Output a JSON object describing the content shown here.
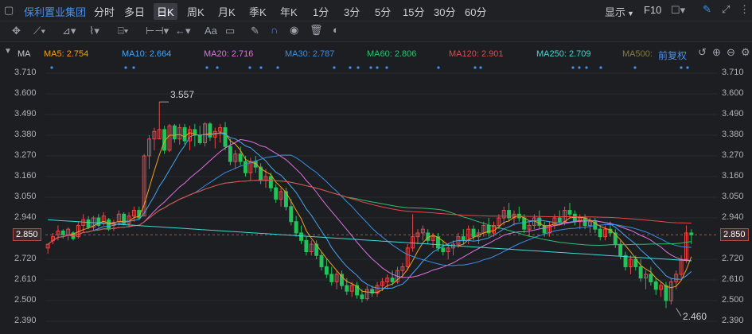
{
  "toolbar": {
    "stock_name": "保利置业集团",
    "tabs": [
      "分时",
      "多日",
      "日K",
      "周K",
      "月K",
      "季K",
      "年K",
      "1分",
      "3分",
      "5分",
      "15分",
      "30分",
      "60分"
    ],
    "active_tab": "日K",
    "display_label": "显示",
    "f10_label": "F10",
    "draw_text_label": "Aa"
  },
  "indicator": {
    "name": "MA",
    "ma": [
      {
        "label": "MA5: 2.754",
        "color": "#f0a020"
      },
      {
        "label": "MA10: 2.664",
        "color": "#4aa3f0"
      },
      {
        "label": "MA20: 2.716",
        "color": "#e070e0"
      },
      {
        "label": "MA30: 2.787",
        "color": "#3a8fe8"
      },
      {
        "label": "MA60: 2.806",
        "color": "#30c070"
      },
      {
        "label": "MA120: 2.901",
        "color": "#e84848"
      },
      {
        "label": "MA250: 2.709",
        "color": "#40d8d8"
      },
      {
        "label": "MA500:",
        "color": "#8a7a3a"
      }
    ],
    "adjust_label": "前复权"
  },
  "axis": {
    "ticks": [
      "3.710",
      "3.600",
      "3.490",
      "3.380",
      "3.270",
      "3.160",
      "3.050",
      "2.940",
      "2.850",
      "2.720",
      "2.610",
      "2.500",
      "2.390"
    ],
    "current_price": "2.850"
  },
  "annotations": {
    "high": "3.557",
    "low": "2.460"
  },
  "colors": {
    "up": "#e84848",
    "down": "#25c25a",
    "bg": "#1c1e22"
  },
  "chart_data": {
    "type": "candlestick",
    "ylim": [
      2.39,
      3.71
    ],
    "ohlc": [
      [
        2.78,
        2.8,
        2.75,
        2.8
      ],
      [
        2.82,
        2.86,
        2.8,
        2.84
      ],
      [
        2.85,
        2.9,
        2.82,
        2.87
      ],
      [
        2.87,
        2.88,
        2.83,
        2.85
      ],
      [
        2.85,
        2.89,
        2.82,
        2.88
      ],
      [
        2.86,
        2.87,
        2.82,
        2.83
      ],
      [
        2.84,
        2.92,
        2.83,
        2.9
      ],
      [
        2.9,
        2.96,
        2.86,
        2.93
      ],
      [
        2.93,
        2.95,
        2.88,
        2.89
      ],
      [
        2.89,
        2.95,
        2.87,
        2.94
      ],
      [
        2.94,
        2.96,
        2.89,
        2.9
      ],
      [
        2.91,
        2.97,
        2.9,
        2.95
      ],
      [
        2.93,
        2.94,
        2.87,
        2.88
      ],
      [
        2.9,
        2.93,
        2.87,
        2.91
      ],
      [
        2.92,
        2.98,
        2.9,
        2.96
      ],
      [
        2.96,
        2.97,
        2.9,
        2.91
      ],
      [
        2.91,
        2.97,
        2.89,
        2.95
      ],
      [
        2.95,
        3.0,
        2.92,
        2.98
      ],
      [
        2.98,
        3.0,
        2.93,
        2.94
      ],
      [
        2.95,
        3.28,
        2.95,
        3.27
      ],
      [
        3.27,
        3.38,
        3.2,
        3.36
      ],
      [
        3.36,
        3.42,
        3.3,
        3.4
      ],
      [
        3.36,
        3.557,
        3.36,
        3.41
      ],
      [
        3.41,
        3.43,
        3.28,
        3.3
      ],
      [
        3.3,
        3.44,
        3.29,
        3.43
      ],
      [
        3.43,
        3.44,
        3.34,
        3.36
      ],
      [
        3.36,
        3.44,
        3.33,
        3.42
      ],
      [
        3.42,
        3.44,
        3.33,
        3.35
      ],
      [
        3.35,
        3.43,
        3.3,
        3.41
      ],
      [
        3.41,
        3.44,
        3.32,
        3.38
      ],
      [
        3.38,
        3.43,
        3.33,
        3.34
      ],
      [
        3.34,
        3.45,
        3.32,
        3.44
      ],
      [
        3.44,
        3.45,
        3.35,
        3.37
      ],
      [
        3.37,
        3.42,
        3.31,
        3.4
      ],
      [
        3.4,
        3.44,
        3.34,
        3.42
      ],
      [
        3.42,
        3.45,
        3.3,
        3.32
      ],
      [
        3.32,
        3.36,
        3.22,
        3.24
      ],
      [
        3.24,
        3.3,
        3.2,
        3.28
      ],
      [
        3.28,
        3.32,
        3.22,
        3.24
      ],
      [
        3.24,
        3.27,
        3.16,
        3.18
      ],
      [
        3.18,
        3.26,
        3.14,
        3.24
      ],
      [
        3.24,
        3.27,
        3.18,
        3.21
      ],
      [
        3.21,
        3.23,
        3.12,
        3.14
      ],
      [
        3.14,
        3.2,
        3.1,
        3.16
      ],
      [
        3.16,
        3.18,
        3.08,
        3.1
      ],
      [
        3.1,
        3.12,
        3.02,
        3.04
      ],
      [
        3.04,
        3.1,
        3.0,
        3.08
      ],
      [
        3.08,
        3.1,
        2.98,
        3.0
      ],
      [
        3.0,
        3.04,
        2.9,
        2.92
      ],
      [
        2.92,
        2.95,
        2.84,
        2.86
      ],
      [
        2.86,
        2.9,
        2.8,
        2.82
      ],
      [
        2.82,
        2.84,
        2.74,
        2.76
      ],
      [
        2.76,
        2.82,
        2.74,
        2.8
      ],
      [
        2.8,
        2.82,
        2.72,
        2.74
      ],
      [
        2.74,
        2.76,
        2.66,
        2.68
      ],
      [
        2.68,
        2.72,
        2.62,
        2.64
      ],
      [
        2.64,
        2.68,
        2.58,
        2.6
      ],
      [
        2.6,
        2.66,
        2.56,
        2.64
      ],
      [
        2.64,
        2.66,
        2.56,
        2.58
      ],
      [
        2.58,
        2.62,
        2.53,
        2.55
      ],
      [
        2.55,
        2.6,
        2.52,
        2.58
      ],
      [
        2.58,
        2.6,
        2.51,
        2.53
      ],
      [
        2.53,
        2.56,
        2.49,
        2.51
      ],
      [
        2.51,
        2.58,
        2.5,
        2.56
      ],
      [
        2.56,
        2.58,
        2.52,
        2.54
      ],
      [
        2.54,
        2.6,
        2.52,
        2.58
      ],
      [
        2.58,
        2.62,
        2.55,
        2.6
      ],
      [
        2.6,
        2.64,
        2.56,
        2.62
      ],
      [
        2.62,
        2.66,
        2.58,
        2.6
      ],
      [
        2.6,
        2.68,
        2.59,
        2.66
      ],
      [
        2.66,
        2.7,
        2.62,
        2.68
      ],
      [
        2.68,
        2.8,
        2.66,
        2.78
      ],
      [
        2.78,
        2.96,
        2.76,
        2.84
      ],
      [
        2.84,
        2.88,
        2.8,
        2.86
      ],
      [
        2.86,
        2.9,
        2.82,
        2.88
      ],
      [
        2.86,
        2.88,
        2.8,
        2.82
      ],
      [
        2.82,
        2.86,
        2.78,
        2.84
      ],
      [
        2.84,
        2.86,
        2.76,
        2.78
      ],
      [
        2.78,
        2.82,
        2.74,
        2.76
      ],
      [
        2.76,
        2.8,
        2.72,
        2.78
      ],
      [
        2.78,
        2.82,
        2.74,
        2.8
      ],
      [
        2.8,
        2.86,
        2.78,
        2.84
      ],
      [
        2.84,
        2.88,
        2.8,
        2.82
      ],
      [
        2.82,
        2.9,
        2.8,
        2.88
      ],
      [
        2.88,
        2.9,
        2.82,
        2.84
      ],
      [
        2.84,
        2.88,
        2.8,
        2.86
      ],
      [
        2.86,
        2.92,
        2.84,
        2.9
      ],
      [
        2.9,
        2.94,
        2.84,
        2.86
      ],
      [
        2.86,
        2.92,
        2.84,
        2.9
      ],
      [
        2.9,
        2.96,
        2.88,
        2.94
      ],
      [
        2.94,
        3.0,
        2.9,
        2.98
      ],
      [
        2.98,
        3.02,
        2.92,
        2.94
      ],
      [
        2.94,
        2.98,
        2.9,
        2.96
      ],
      [
        2.96,
        3.0,
        2.92,
        2.94
      ],
      [
        2.94,
        2.96,
        2.86,
        2.88
      ],
      [
        2.88,
        2.92,
        2.84,
        2.9
      ],
      [
        2.9,
        2.96,
        2.88,
        2.94
      ],
      [
        2.94,
        2.98,
        2.88,
        2.9
      ],
      [
        2.9,
        2.92,
        2.84,
        2.86
      ],
      [
        2.86,
        2.92,
        2.84,
        2.9
      ],
      [
        2.9,
        2.96,
        2.88,
        2.94
      ],
      [
        2.94,
        2.98,
        2.9,
        2.92
      ],
      [
        2.92,
        3.0,
        2.9,
        2.98
      ],
      [
        2.98,
        3.02,
        2.94,
        2.96
      ],
      [
        2.96,
        2.98,
        2.9,
        2.92
      ],
      [
        2.92,
        2.96,
        2.88,
        2.94
      ],
      [
        2.94,
        2.96,
        2.88,
        2.9
      ],
      [
        2.9,
        2.94,
        2.86,
        2.92
      ],
      [
        2.92,
        2.94,
        2.86,
        2.88
      ],
      [
        2.88,
        2.9,
        2.82,
        2.84
      ],
      [
        2.84,
        2.9,
        2.82,
        2.88
      ],
      [
        2.88,
        2.92,
        2.84,
        2.86
      ],
      [
        2.86,
        2.88,
        2.78,
        2.8
      ],
      [
        2.8,
        2.82,
        2.72,
        2.74
      ],
      [
        2.74,
        2.76,
        2.66,
        2.68
      ],
      [
        2.68,
        2.74,
        2.64,
        2.72
      ],
      [
        2.72,
        2.74,
        2.66,
        2.68
      ],
      [
        2.68,
        2.72,
        2.6,
        2.62
      ],
      [
        2.62,
        2.66,
        2.56,
        2.64
      ],
      [
        2.64,
        2.68,
        2.58,
        2.6
      ],
      [
        2.6,
        2.62,
        2.53,
        2.56
      ],
      [
        2.56,
        2.6,
        2.52,
        2.58
      ],
      [
        2.58,
        2.6,
        2.46,
        2.5
      ],
      [
        2.5,
        2.62,
        2.48,
        2.6
      ],
      [
        2.6,
        2.66,
        2.56,
        2.64
      ],
      [
        2.64,
        2.74,
        2.62,
        2.72
      ],
      [
        2.72,
        2.9,
        2.7,
        2.86
      ],
      [
        2.86,
        2.88,
        2.8,
        2.85
      ]
    ]
  }
}
